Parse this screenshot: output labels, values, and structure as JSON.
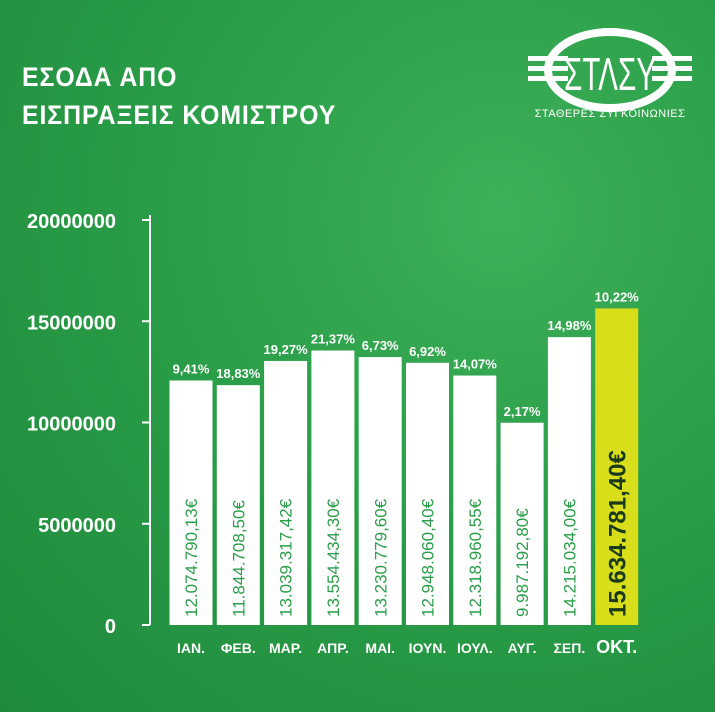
{
  "header": {
    "title_line1": "ΕΣΟΔΑ ΑΠΟ",
    "title_line2": "ΕΙΣΠΡΑΞΕΙΣ ΚΟΜΙΣΤΡΟΥ"
  },
  "logo": {
    "mark": "ΣΤΑΣΥ",
    "subtitle": "ΣΤΑΘΕΡΕΣ ΣΥΓΚΟΙΝΩΝΙΕΣ"
  },
  "colors": {
    "background": "#2a9e48",
    "bar": "#ffffff",
    "highlight_bar": "#d8de1a",
    "value_text": "#2a9e48",
    "highlight_text": "#1a3a1a"
  },
  "chart_data": {
    "type": "bar",
    "title": "",
    "xlabel": "",
    "ylabel": "",
    "ylim": [
      0,
      20000000
    ],
    "yticks": [
      "0",
      "5000000",
      "10000000",
      "15000000",
      "20000000"
    ],
    "ytick_values": [
      0,
      5000000,
      10000000,
      15000000,
      20000000
    ],
    "categories": [
      "ΙΑΝ.",
      "ΦΕΒ.",
      "ΜΑΡ.",
      "ΑΠΡ.",
      "ΜΑΙ.",
      "ΙΟΥΝ.",
      "ΙΟΥΛ.",
      "ΑΥΓ.",
      "ΣΕΠ.",
      "ΟΚΤ."
    ],
    "values": [
      12074790.13,
      11844708.5,
      13039317.42,
      13554434.3,
      13230779.6,
      12948060.4,
      12318960.55,
      9987192.8,
      14215034.0,
      15634781.4
    ],
    "value_labels": [
      "12.074.790,13€",
      "11.844.708,50€",
      "13.039.317,42€",
      "13.554.434,30€",
      "13.230.779,60€",
      "12.948.060,40€",
      "12.318.960,55€",
      "9.987.192,80€",
      "14.215.034,00€",
      "15.634.781,40€"
    ],
    "percent_labels": [
      "9,41%",
      "18,83%",
      "19,27%",
      "21,37%",
      "6,73%",
      "6,92%",
      "14,07%",
      "2,17%",
      "14,98%",
      "10,22%"
    ],
    "highlight_index": 9,
    "grid": false,
    "legend": "none"
  }
}
